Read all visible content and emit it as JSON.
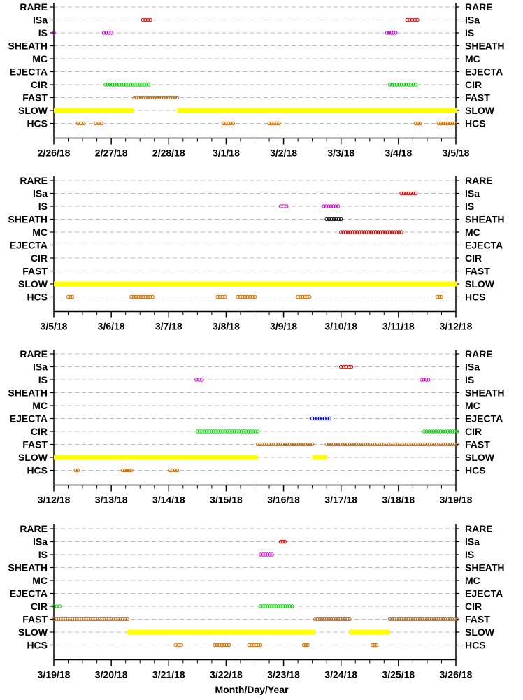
{
  "chart_data": {
    "type": "scatter",
    "xlabel": "Month/Day/Year",
    "categories": [
      "RARE",
      "ISa",
      "IS",
      "SHEATH",
      "MC",
      "EJECTA",
      "CIR",
      "FAST",
      "SLOW",
      "HCS"
    ],
    "colors": {
      "ISa": "#cc0000",
      "IS": "#cc00cc",
      "SHEATH": "#000000",
      "MC": "#cc0000",
      "EJECTA": "#0000cc",
      "CIR": "#00cc00",
      "FAST": "#cc6600",
      "SLOW": "#ffff00",
      "HCS": "#cc6600",
      "grid": "#bbbbbb"
    },
    "panels": [
      {
        "start_day": 0,
        "tick_labels": [
          "2/26/18",
          "2/27/18",
          "2/28/18",
          "3/1/18",
          "3/2/18",
          "3/3/18",
          "3/4/18",
          "3/5/18"
        ],
        "intervals": [
          {
            "cat": "SLOW",
            "from": 0,
            "to": 1.4
          },
          {
            "cat": "SLOW",
            "from": 2.15,
            "to": 7.02
          }
        ],
        "events": [
          {
            "cat": "ISa",
            "from": 1.55,
            "to": 1.68
          },
          {
            "cat": "ISa",
            "from": 6.15,
            "to": 6.33
          },
          {
            "cat": "IS",
            "from": 0,
            "to": 0.02
          },
          {
            "cat": "IS",
            "from": 0.87,
            "to": 1.0
          },
          {
            "cat": "IS",
            "from": 5.8,
            "to": 5.95
          },
          {
            "cat": "CIR",
            "from": 0.9,
            "to": 1.65
          },
          {
            "cat": "CIR",
            "from": 5.85,
            "to": 6.3
          },
          {
            "cat": "FAST",
            "from": 1.4,
            "to": 2.15
          },
          {
            "cat": "HCS",
            "from": 0.42,
            "to": 0.52
          },
          {
            "cat": "HCS",
            "from": 0.73,
            "to": 0.83
          },
          {
            "cat": "HCS",
            "from": 2.95,
            "to": 3.12
          },
          {
            "cat": "HCS",
            "from": 3.75,
            "to": 3.92
          },
          {
            "cat": "HCS",
            "from": 6.3,
            "to": 6.38
          },
          {
            "cat": "HCS",
            "from": 6.7,
            "to": 6.98
          }
        ]
      },
      {
        "start_day": 7,
        "tick_labels": [
          "3/5/18",
          "3/6/18",
          "3/7/18",
          "3/8/18",
          "3/9/18",
          "3/10/18",
          "3/11/18",
          "3/12/18"
        ],
        "intervals": [
          {
            "cat": "SLOW",
            "from": 0,
            "to": 7.02
          }
        ],
        "events": [
          {
            "cat": "ISa",
            "from": 6.05,
            "to": 6.3
          },
          {
            "cat": "IS",
            "from": 3.95,
            "to": 4.05
          },
          {
            "cat": "IS",
            "from": 4.7,
            "to": 4.95
          },
          {
            "cat": "SHEATH",
            "from": 4.75,
            "to": 5.0
          },
          {
            "cat": "MC",
            "from": 5.0,
            "to": 6.05
          },
          {
            "cat": "HCS",
            "from": 0.25,
            "to": 0.32
          },
          {
            "cat": "HCS",
            "from": 1.35,
            "to": 1.72
          },
          {
            "cat": "HCS",
            "from": 2.85,
            "to": 2.98
          },
          {
            "cat": "HCS",
            "from": 3.2,
            "to": 3.5
          },
          {
            "cat": "HCS",
            "from": 4.25,
            "to": 4.45
          },
          {
            "cat": "HCS",
            "from": 6.68,
            "to": 6.75
          }
        ]
      },
      {
        "start_day": 14,
        "tick_labels": [
          "3/12/18",
          "3/13/18",
          "3/14/18",
          "3/15/18",
          "3/16/18",
          "3/17/18",
          "3/18/18",
          "3/19/18"
        ],
        "intervals": [
          {
            "cat": "SLOW",
            "from": 0,
            "to": 3.55
          },
          {
            "cat": "SLOW",
            "from": 4.5,
            "to": 4.75
          }
        ],
        "events": [
          {
            "cat": "ISa",
            "from": 5.0,
            "to": 5.18
          },
          {
            "cat": "IS",
            "from": 2.48,
            "to": 2.58
          },
          {
            "cat": "IS",
            "from": 6.4,
            "to": 6.52
          },
          {
            "cat": "EJECTA",
            "from": 4.5,
            "to": 4.8
          },
          {
            "cat": "CIR",
            "from": 2.5,
            "to": 3.55
          },
          {
            "cat": "CIR",
            "from": 6.45,
            "to": 7.02
          },
          {
            "cat": "FAST",
            "from": 3.55,
            "to": 4.5
          },
          {
            "cat": "FAST",
            "from": 4.75,
            "to": 7.02
          },
          {
            "cat": "HCS",
            "from": 0.38,
            "to": 0.42
          },
          {
            "cat": "HCS",
            "from": 1.2,
            "to": 1.35
          },
          {
            "cat": "HCS",
            "from": 2.02,
            "to": 2.15
          }
        ]
      },
      {
        "start_day": 21,
        "tick_labels": [
          "3/19/18",
          "3/20/18",
          "3/21/18",
          "3/22/18",
          "3/23/18",
          "3/24/18",
          "3/25/18",
          "3/26/18"
        ],
        "intervals": [
          {
            "cat": "SLOW",
            "from": 1.28,
            "to": 4.55
          },
          {
            "cat": "SLOW",
            "from": 5.15,
            "to": 5.85
          }
        ],
        "events": [
          {
            "cat": "ISa",
            "from": 3.95,
            "to": 4.02
          },
          {
            "cat": "IS",
            "from": 3.6,
            "to": 3.8
          },
          {
            "cat": "CIR",
            "from": 0,
            "to": 0.1
          },
          {
            "cat": "CIR",
            "from": 3.6,
            "to": 4.15
          },
          {
            "cat": "FAST",
            "from": 0,
            "to": 1.28
          },
          {
            "cat": "FAST",
            "from": 4.55,
            "to": 5.15
          },
          {
            "cat": "FAST",
            "from": 5.85,
            "to": 7.02
          },
          {
            "cat": "HCS",
            "from": 2.12,
            "to": 2.22
          },
          {
            "cat": "HCS",
            "from": 2.8,
            "to": 3.05
          },
          {
            "cat": "HCS",
            "from": 3.4,
            "to": 3.6
          },
          {
            "cat": "HCS",
            "from": 4.35,
            "to": 4.42
          },
          {
            "cat": "HCS",
            "from": 5.55,
            "to": 5.62
          }
        ]
      }
    ]
  }
}
